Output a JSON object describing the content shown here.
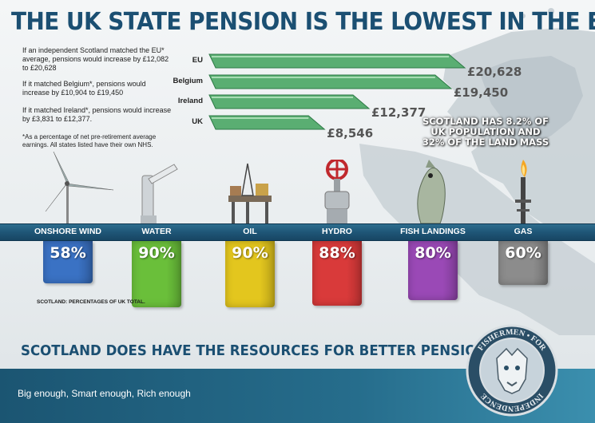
{
  "title": "THE UK STATE PENSION IS THE LOWEST IN THE EU*",
  "notes": [
    "If an independent Scotland matched the EU* average, pensions would increase by £12,082 to £20,628",
    "If it matched Belgium*, pensions would increase by £10,904 to £19,450",
    "If it matched Ireland*, pensions would increase by £3,831 to £12,377.",
    "*As a percentage of net pre-retirement average earnings. All states listed have their own NHS."
  ],
  "population_note": "SCOTLAND HAS 8.2% OF UK POPULATION AND 32% OF THE LAND MASS",
  "scotland_note": "SCOTLAND: PERCENTAGES OF UK TOTAL.",
  "slogan": "SCOTLAND DOES HAVE THE RESOURCES FOR BETTER PENSIONS",
  "footer_text": "Big enough, Smart enough, Rich enough",
  "emblem_text": [
    "FOR",
    "INDEPENDENCE",
    "FISHERMEN"
  ],
  "colors": {
    "title": "#1b4f72",
    "pension_bar": "#5aae72",
    "band": "#1f5677",
    "wind": "#3a72c4",
    "water": "#6abf3a",
    "oil": "#e3c61e",
    "hydro": "#d93a3a",
    "fish": "#9a49b6",
    "gas": "#8c8c8c"
  },
  "chart_data": [
    {
      "type": "bar",
      "orientation": "horizontal",
      "categories": [
        "EU",
        "Belgium",
        "Ireland",
        "UK"
      ],
      "values": [
        20628,
        19450,
        12377,
        8546
      ],
      "value_labels": [
        "£20,628",
        "£19,450",
        "£12,377",
        "£8,546"
      ]
    },
    {
      "type": "bar",
      "categories": [
        "ONSHORE WIND",
        "WATER",
        "OIL",
        "HYDRO",
        "FISH LANDINGS",
        "GAS"
      ],
      "values": [
        58,
        90,
        90,
        88,
        80,
        60
      ],
      "value_labels": [
        "58%",
        "90%",
        "90%",
        "88%",
        "80%",
        "60%"
      ],
      "icons": [
        "wind-turbine-icon",
        "tap-icon",
        "oil-rig-icon",
        "valve-icon",
        "fish-icon",
        "gas-flare-icon"
      ],
      "color_keys": [
        "wind",
        "water",
        "oil",
        "hydro",
        "fish",
        "gas"
      ]
    }
  ]
}
